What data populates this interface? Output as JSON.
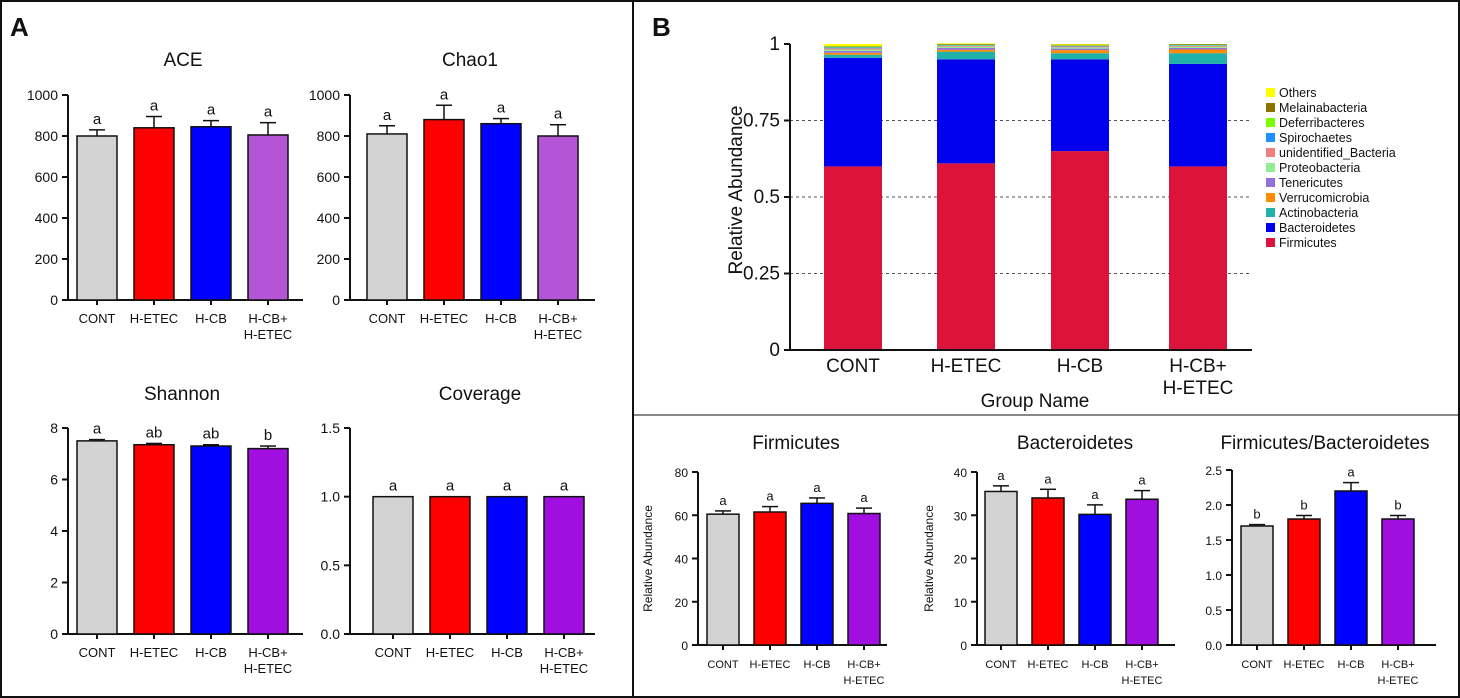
{
  "panels": {
    "A": "A",
    "B": "B"
  },
  "colors": {
    "CONT": "#d3d3d3",
    "H-ETEC": "#ff0000",
    "H-CB": "#0000ff",
    "H-CB+H-ETEC (A-top)": "#b455d6",
    "H-CB+H-ETEC": "#a10fe0"
  },
  "chart_data": [
    {
      "id": "ace",
      "type": "bar",
      "title": "ACE",
      "categories": [
        "CONT",
        "H-ETEC",
        "H-CB",
        "H-CB+\nH-ETEC"
      ],
      "values": [
        800,
        840,
        845,
        805
      ],
      "errors": [
        30,
        55,
        30,
        60
      ],
      "significance": [
        "a",
        "a",
        "a",
        "a"
      ],
      "ylim": [
        0,
        1000
      ],
      "yticks": [
        0,
        200,
        400,
        600,
        800,
        1000
      ],
      "ytick_labels": [
        "0",
        "200",
        "400",
        "600",
        "800",
        "1000"
      ]
    },
    {
      "id": "chao1",
      "type": "bar",
      "title": "Chao1",
      "categories": [
        "CONT",
        "H-ETEC",
        "H-CB",
        "H-CB+\nH-ETEC"
      ],
      "values": [
        810,
        880,
        860,
        800
      ],
      "errors": [
        40,
        70,
        25,
        55
      ],
      "significance": [
        "a",
        "a",
        "a",
        "a"
      ],
      "ylim": [
        0,
        1000
      ],
      "yticks": [
        0,
        200,
        400,
        600,
        800,
        1000
      ],
      "ytick_labels": [
        "0",
        "200",
        "400",
        "600",
        "800",
        "1000"
      ]
    },
    {
      "id": "shannon",
      "type": "bar",
      "title": "Shannon",
      "categories": [
        "CONT",
        "H-ETEC",
        "H-CB",
        "H-CB+\nH-ETEC"
      ],
      "values": [
        7.5,
        7.35,
        7.3,
        7.2
      ],
      "errors": [
        0.05,
        0.05,
        0.05,
        0.1
      ],
      "significance": [
        "a",
        "ab",
        "ab",
        "b"
      ],
      "ylim": [
        0,
        8
      ],
      "yticks": [
        0,
        2,
        4,
        6,
        8
      ],
      "ytick_labels": [
        "0",
        "2",
        "4",
        "6",
        "8"
      ]
    },
    {
      "id": "coverage",
      "type": "bar",
      "title": "Coverage",
      "categories": [
        "CONT",
        "H-ETEC",
        "H-CB",
        "H-CB+\nH-ETEC"
      ],
      "values": [
        1.0,
        1.0,
        1.0,
        1.0
      ],
      "errors": [
        0,
        0,
        0,
        0
      ],
      "significance": [
        "a",
        "a",
        "a",
        "a"
      ],
      "ylim": [
        0,
        1.5
      ],
      "yticks": [
        0,
        0.5,
        1.0,
        1.5
      ],
      "ytick_labels": [
        "0.0",
        "0.5",
        "1.0",
        "1.5"
      ]
    },
    {
      "id": "stacked",
      "type": "bar",
      "stacked": true,
      "xlabel": "Group Name",
      "ylabel": "Relative Abundance",
      "categories": [
        "CONT",
        "H-ETEC",
        "H-CB",
        "H-CB+\nH-ETEC"
      ],
      "ylim": [
        0,
        1
      ],
      "yticks": [
        0,
        0.25,
        0.5,
        0.75,
        1
      ],
      "ytick_labels": [
        "0",
        "0.25",
        "0.5",
        "0.75",
        "1"
      ],
      "series": [
        {
          "name": "Firmicutes",
          "color": "#dc143c",
          "values": [
            0.6,
            0.61,
            0.65,
            0.6
          ]
        },
        {
          "name": "Bacteroidetes",
          "color": "#0000ee",
          "values": [
            0.355,
            0.34,
            0.3,
            0.335
          ]
        },
        {
          "name": "Actinobacteria",
          "color": "#20b2aa",
          "values": [
            0.01,
            0.025,
            0.02,
            0.035
          ]
        },
        {
          "name": "Verrucomicrobia",
          "color": "#ff8c00",
          "values": [
            0.006,
            0.006,
            0.01,
            0.012
          ]
        },
        {
          "name": "Tenericutes",
          "color": "#9370db",
          "values": [
            0.006,
            0.006,
            0.005,
            0.005
          ]
        },
        {
          "name": "Proteobacteria",
          "color": "#90ee90",
          "values": [
            0.005,
            0.004,
            0.004,
            0.004
          ]
        },
        {
          "name": "unidentified_Bacteria",
          "color": "#f08080",
          "values": [
            0.004,
            0.003,
            0.003,
            0.003
          ]
        },
        {
          "name": "Spirochaetes",
          "color": "#1e90ff",
          "values": [
            0.003,
            0.002,
            0.002,
            0.002
          ]
        },
        {
          "name": "Deferribacteres",
          "color": "#7cfc00",
          "values": [
            0.002,
            0.002,
            0.002,
            0.002
          ]
        },
        {
          "name": "Melainabacteria",
          "color": "#8b7500",
          "values": [
            0.002,
            0.002,
            0.002,
            0.002
          ]
        },
        {
          "name": "Others",
          "color": "#ffff00",
          "values": [
            0.007,
            0.002,
            0.002,
            0.0
          ]
        }
      ],
      "legend": [
        "Others",
        "Melainabacteria",
        "Deferribacteres",
        "Spirochaetes",
        "unidentified_Bacteria",
        "Proteobacteria",
        "Tenericutes",
        "Verrucomicrobia",
        "Actinobacteria",
        "Bacteroidetes",
        "Firmicutes"
      ]
    },
    {
      "id": "firmicutes",
      "type": "bar",
      "title": "Firmicutes",
      "ylabel": "Relative Abundance",
      "categories": [
        "CONT",
        "H-ETEC",
        "H-CB",
        "H-CB+\nH-ETEC"
      ],
      "values": [
        60.5,
        61.5,
        65.5,
        60.8
      ],
      "errors": [
        1.5,
        2.5,
        2.5,
        2.5
      ],
      "significance": [
        "a",
        "a",
        "a",
        "a"
      ],
      "ylim": [
        0,
        80
      ],
      "yticks": [
        0,
        20,
        40,
        60,
        80
      ],
      "ytick_labels": [
        "0",
        "20",
        "40",
        "60",
        "80"
      ]
    },
    {
      "id": "bacteroidetes",
      "type": "bar",
      "title": "Bacteroidetes",
      "ylabel": "Relative Abundance",
      "categories": [
        "CONT",
        "H-ETEC",
        "H-CB",
        "H-CB+\nH-ETEC"
      ],
      "values": [
        35.5,
        34.0,
        30.2,
        33.7
      ],
      "errors": [
        1.3,
        2.0,
        2.2,
        2.0
      ],
      "significance": [
        "a",
        "a",
        "a",
        "a"
      ],
      "ylim": [
        0,
        40
      ],
      "yticks": [
        0,
        10,
        20,
        30,
        40
      ],
      "ytick_labels": [
        "0",
        "10",
        "20",
        "30",
        "40"
      ]
    },
    {
      "id": "fb_ratio",
      "type": "bar",
      "title": "Firmicutes/Bacteroidetes",
      "categories": [
        "CONT",
        "H-ETEC",
        "H-CB",
        "H-CB+\nH-ETEC"
      ],
      "values": [
        1.7,
        1.8,
        2.2,
        1.8
      ],
      "errors": [
        0.02,
        0.05,
        0.12,
        0.05
      ],
      "significance": [
        "b",
        "b",
        "a",
        "b"
      ],
      "ylim": [
        0,
        2.5
      ],
      "yticks": [
        0,
        0.5,
        1.0,
        1.5,
        2.0,
        2.5
      ],
      "ytick_labels": [
        "0.0",
        "0.5",
        "1.0",
        "1.5",
        "2.0",
        "2.5"
      ]
    }
  ]
}
